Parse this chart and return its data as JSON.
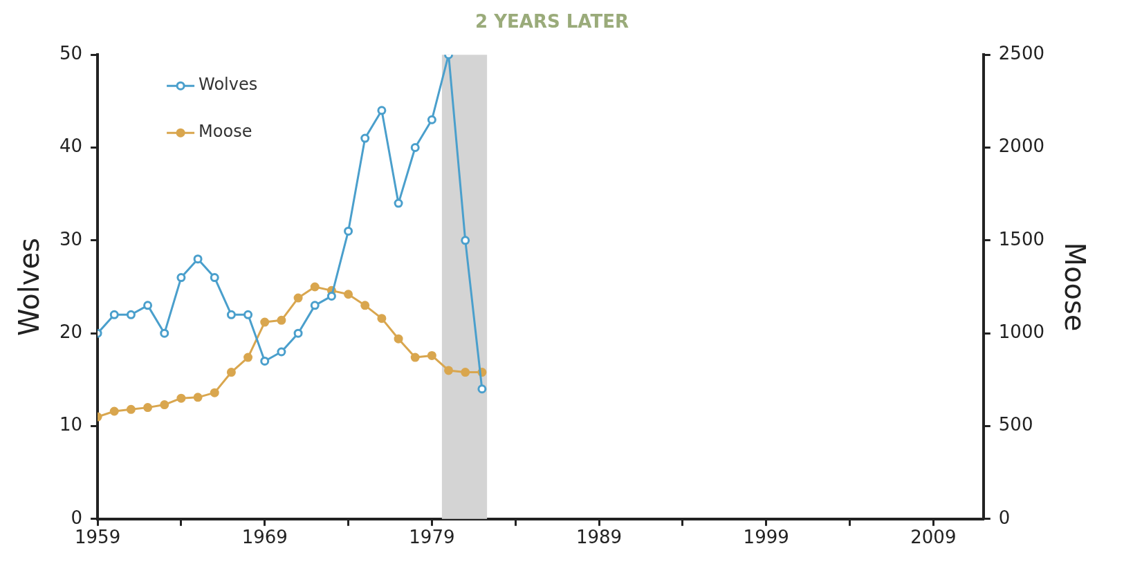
{
  "chart_data": {
    "type": "line",
    "title": "2 YEARS LATER",
    "ylabel": "Wolves",
    "y2label": "Moose",
    "x": [
      1959,
      1960,
      1961,
      1962,
      1963,
      1964,
      1965,
      1966,
      1967,
      1968,
      1969,
      1970,
      1971,
      1972,
      1973,
      1974,
      1975,
      1976,
      1977,
      1978,
      1979,
      1980,
      1981,
      1982
    ],
    "series": [
      {
        "name": "Wolves",
        "color": "#4a9fcc",
        "values": [
          20,
          22,
          22,
          23,
          20,
          26,
          28,
          26,
          22,
          22,
          17,
          18,
          20,
          23,
          24,
          31,
          41,
          44,
          34,
          40,
          43,
          50,
          30,
          14
        ]
      },
      {
        "name": "Moose",
        "color": "#d9a64e",
        "axis": "y2",
        "values": [
          550,
          580,
          590,
          600,
          615,
          650,
          655,
          680,
          790,
          870,
          1060,
          1070,
          1190,
          1250,
          1230,
          1210,
          1150,
          1080,
          970,
          870,
          880,
          800,
          790,
          790
        ]
      }
    ],
    "xlim": [
      1959,
      2012
    ],
    "xticks": [
      1959,
      {
        "value": 1964,
        "label": null
      },
      1969,
      {
        "value": 1974,
        "label": null
      },
      1979,
      {
        "value": 1984,
        "label": null
      },
      1989,
      {
        "value": 1994,
        "label": null
      },
      1999,
      {
        "value": 2004,
        "label": null
      },
      2009
    ],
    "ylim": [
      0,
      50
    ],
    "yticks": [
      0,
      10,
      20,
      30,
      40,
      50
    ],
    "y2lim": [
      0,
      2500
    ],
    "y2ticks": [
      0,
      500,
      1000,
      1500,
      2000,
      2500
    ],
    "bands": [
      {
        "axis": "x",
        "from": 1979.6,
        "to": 1982.3,
        "color": "#d4d4d4"
      }
    ],
    "legend": "top left",
    "marker": "circle",
    "grid": false
  }
}
